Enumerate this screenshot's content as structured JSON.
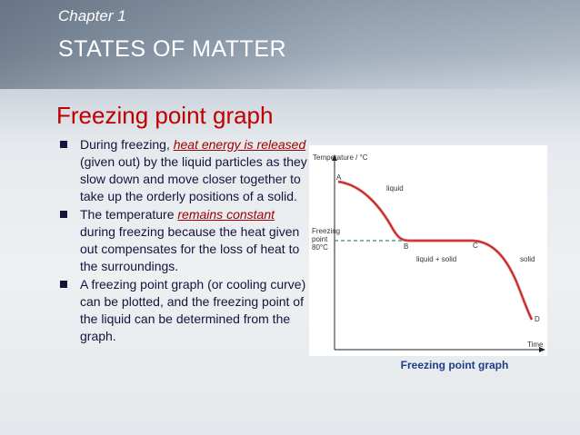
{
  "header": {
    "chapter": "Chapter 1",
    "title": "STATES OF MATTER"
  },
  "slide_title": "Freezing point graph",
  "bullets": [
    {
      "runs": [
        {
          "text": "During freezing, ",
          "emphasis": false
        },
        {
          "text": "heat energy is released",
          "emphasis": true
        },
        {
          "text": " (given out) by the liquid particles as they slow down and move closer together to take up the orderly positions of a solid.",
          "emphasis": false
        }
      ]
    },
    {
      "runs": [
        {
          "text": "The temperature ",
          "emphasis": false
        },
        {
          "text": "remains constant",
          "emphasis": true
        },
        {
          "text": " during freezing because the heat given out compensates for the loss of heat to the surroundings.",
          "emphasis": false
        }
      ]
    },
    {
      "runs": [
        {
          "text": "A freezing point graph (or cooling curve) can be plotted, and the freezing point of the liquid can be determined from the graph.",
          "emphasis": false
        }
      ]
    }
  ],
  "figure": {
    "y_axis_label": "Temperature / °C",
    "x_axis_label": "Time",
    "freezing_label": [
      "Freezing",
      "point",
      "80°C"
    ],
    "points": [
      "A",
      "B",
      "C",
      "D"
    ],
    "regions": [
      "liquid",
      "liquid + solid",
      "solid"
    ],
    "caption": "Freezing point graph"
  }
}
